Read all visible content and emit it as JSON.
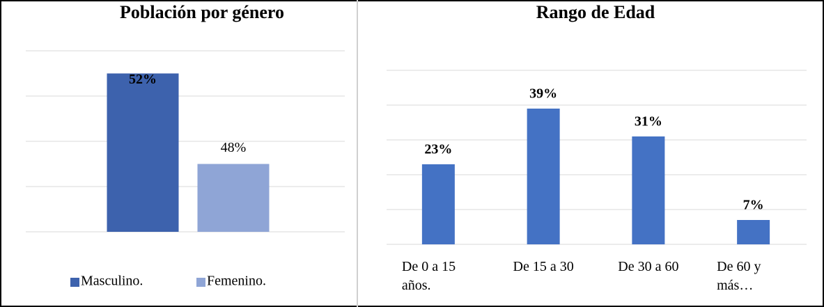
{
  "chart_data": [
    {
      "type": "bar",
      "title": "Población por género",
      "series": [
        {
          "name": "Masculino.",
          "color": "#3d62ad",
          "values": [
            52
          ],
          "value_labels": [
            "52%"
          ]
        },
        {
          "name": "Femenino.",
          "color": "#8fa5d6",
          "values": [
            48
          ],
          "value_labels": [
            "48%"
          ]
        }
      ],
      "ylim": [
        45,
        53
      ],
      "yticks": [
        45,
        47,
        49,
        51,
        53
      ],
      "grid": true,
      "legend": "bottom"
    },
    {
      "type": "bar",
      "title": "Rango de Edad",
      "categories": [
        "De 0 a 15 años.",
        "De 15 a 30",
        "De 30 a 60",
        "De 60 y más…"
      ],
      "values": [
        23,
        39,
        31,
        7
      ],
      "value_labels": [
        "23%",
        "39%",
        "31%",
        "7%"
      ],
      "color": "#4472c4",
      "ylim": [
        0,
        50
      ],
      "yticks": [
        0,
        10,
        20,
        30,
        40,
        50
      ],
      "grid": true
    }
  ]
}
